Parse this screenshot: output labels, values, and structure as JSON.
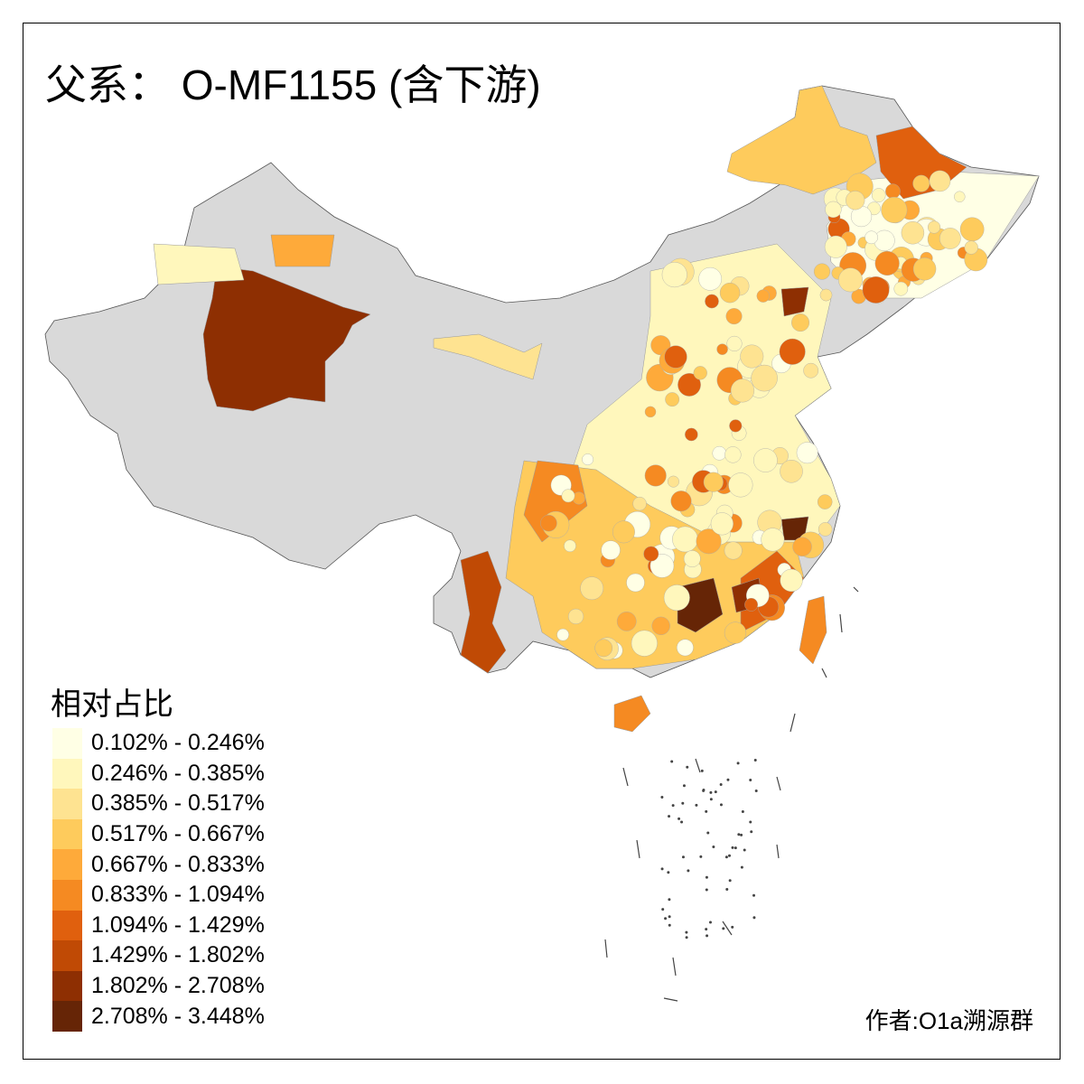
{
  "title": "父系： O-MF1155 (含下游)",
  "legend": {
    "title": "相对占比",
    "items": [
      {
        "label": "0.102% - 0.246%",
        "color": "#FFFFE5"
      },
      {
        "label": "0.246% - 0.385%",
        "color": "#FFF7BC"
      },
      {
        "label": "0.385% - 0.517%",
        "color": "#FEE391"
      },
      {
        "label": "0.517% - 0.667%",
        "color": "#FECB5C"
      },
      {
        "label": "0.667% - 0.833%",
        "color": "#FEAA3A"
      },
      {
        "label": "0.833% - 1.094%",
        "color": "#F58A22"
      },
      {
        "label": "1.094% - 1.429%",
        "color": "#E0600E"
      },
      {
        "label": "1.429% - 1.802%",
        "color": "#C04A05"
      },
      {
        "label": "1.802% - 2.708%",
        "color": "#8E2F02"
      },
      {
        "label": "2.708% - 3.448%",
        "color": "#662506"
      }
    ]
  },
  "no_data_color": "#D9D9D9",
  "credit": "作者:O1a溯源群"
}
